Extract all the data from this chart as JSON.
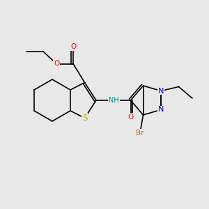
{
  "bg_color": "#e8e8e8",
  "bond_color": "#000000",
  "bond_width": 1.2,
  "atom_colors": {
    "S": "#b8b800",
    "O": "#ff0000",
    "N": "#0000ff",
    "Br": "#cc6600",
    "NH": "#008888",
    "C": "#000000"
  },
  "font_size": 7.5,
  "fig_size": [
    3.0,
    3.0
  ],
  "dpi": 100,
  "xlim": [
    0,
    10
  ],
  "ylim": [
    0,
    10
  ]
}
